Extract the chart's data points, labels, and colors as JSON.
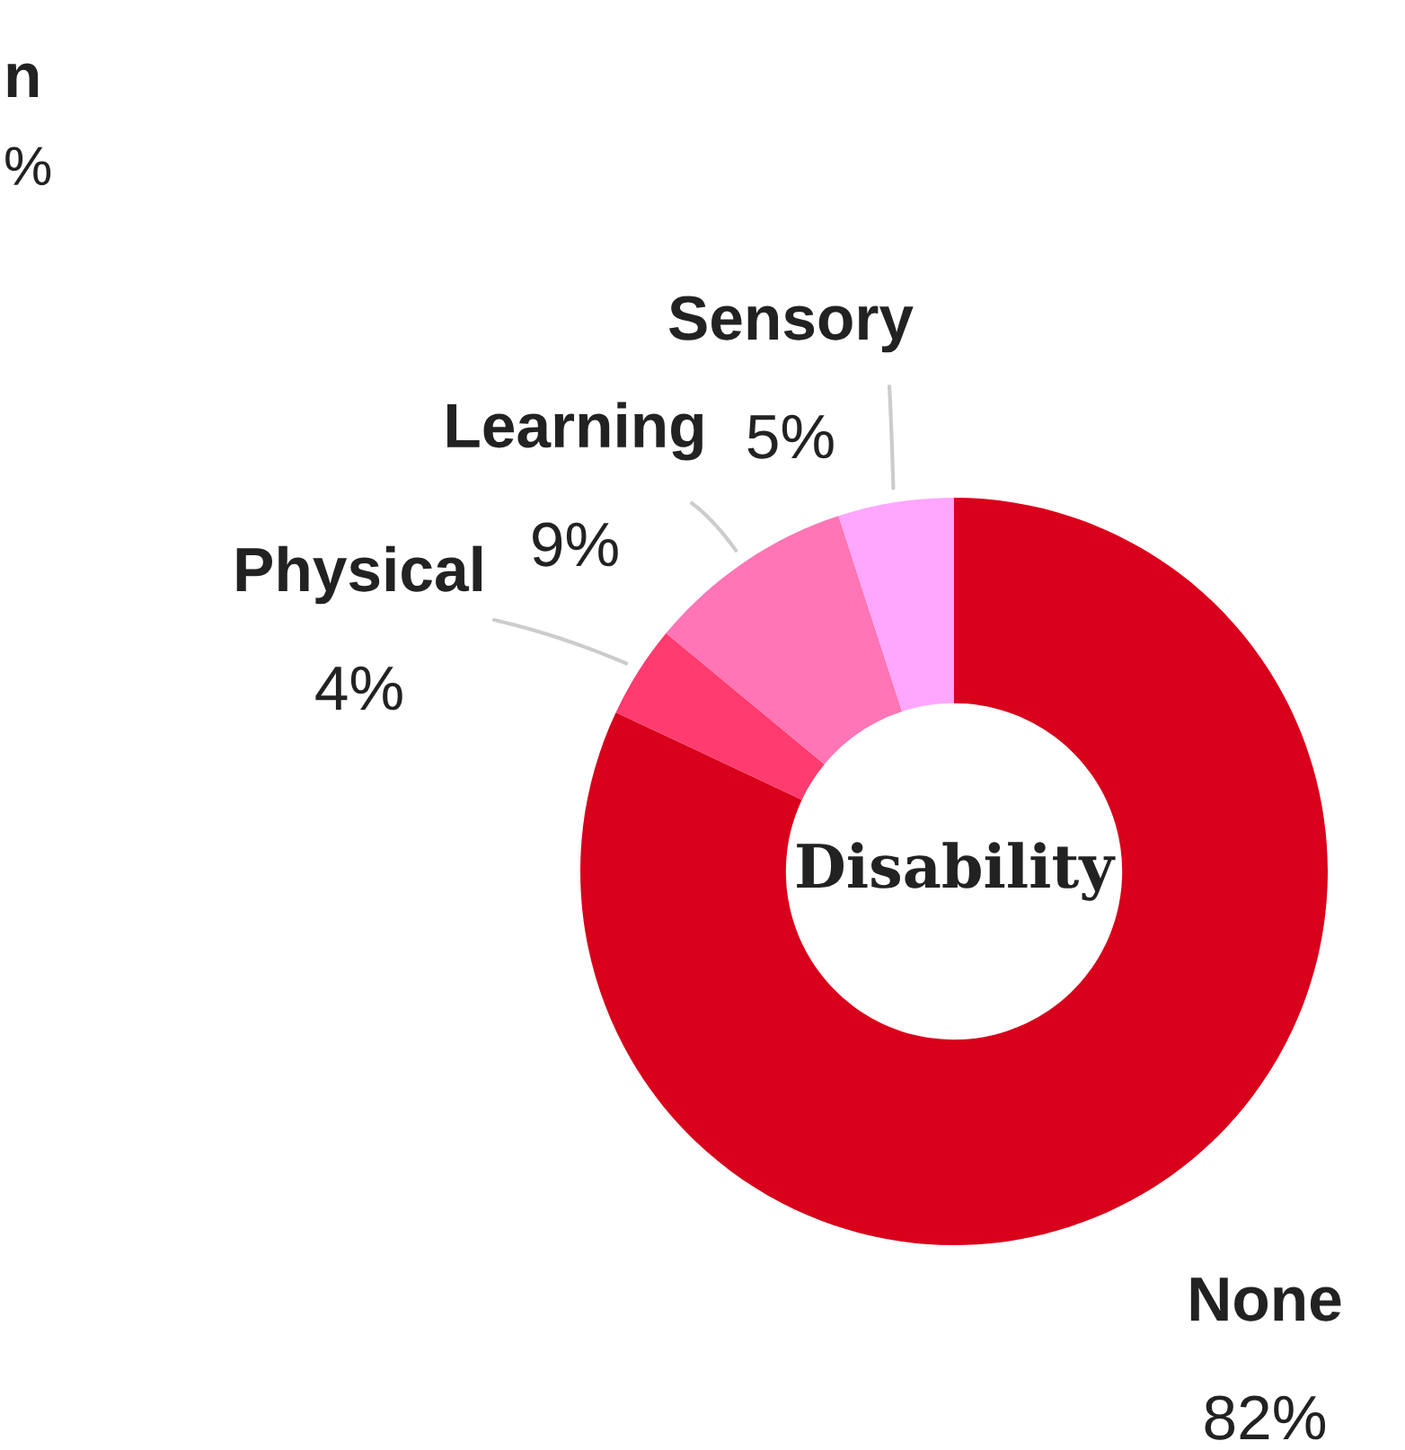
{
  "chart_data": {
    "type": "donut",
    "title": "Disability",
    "categories": [
      "None",
      "Physical",
      "Learning",
      "Sensory"
    ],
    "values": [
      82,
      4,
      9,
      5
    ],
    "value_labels": [
      "82%",
      "4%",
      "9%",
      "5%"
    ],
    "colors": [
      "#d9001b",
      "#ff3b6f",
      "#ff75b5",
      "#ffa6ff"
    ],
    "annotations": [
      "n",
      "%"
    ]
  }
}
